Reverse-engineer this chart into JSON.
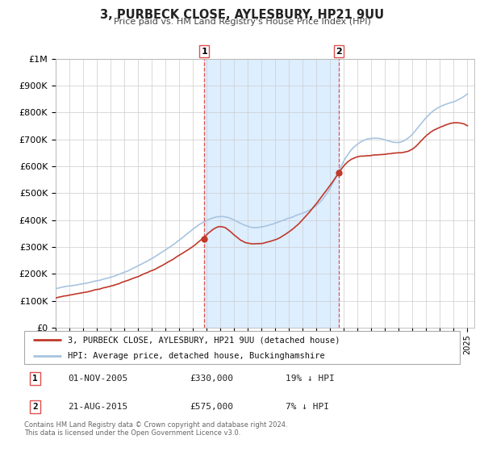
{
  "title": "3, PURBECK CLOSE, AYLESBURY, HP21 9UU",
  "subtitle": "Price paid vs. HM Land Registry's House Price Index (HPI)",
  "ylim": [
    0,
    1000000
  ],
  "yticks": [
    0,
    100000,
    200000,
    300000,
    400000,
    500000,
    600000,
    700000,
    800000,
    900000,
    1000000
  ],
  "xlim_start": 1995.0,
  "xlim_end": 2025.5,
  "xticks": [
    1995,
    1996,
    1997,
    1998,
    1999,
    2000,
    2001,
    2002,
    2003,
    2004,
    2005,
    2006,
    2007,
    2008,
    2009,
    2010,
    2011,
    2012,
    2013,
    2014,
    2015,
    2016,
    2017,
    2018,
    2019,
    2020,
    2021,
    2022,
    2023,
    2024,
    2025
  ],
  "hpi_color": "#a8c4e0",
  "price_color": "#c0392b",
  "marker_color": "#c0392b",
  "shade_color": "#ddeeff",
  "vline_color": "#e05050",
  "marker1_x": 2005.833,
  "marker1_y": 330000,
  "marker2_x": 2015.646,
  "marker2_y": 575000,
  "legend_label1": "3, PURBECK CLOSE, AYLESBURY, HP21 9UU (detached house)",
  "legend_label2": "HPI: Average price, detached house, Buckinghamshire",
  "table_row1_num": "1",
  "table_row1_date": "01-NOV-2005",
  "table_row1_price": "£330,000",
  "table_row1_hpi": "19% ↓ HPI",
  "table_row2_num": "2",
  "table_row2_date": "21-AUG-2015",
  "table_row2_price": "£575,000",
  "table_row2_hpi": "7% ↓ HPI",
  "footer": "Contains HM Land Registry data © Crown copyright and database right 2024.\nThis data is licensed under the Open Government Licence v3.0.",
  "background_color": "#ffffff",
  "grid_color": "#cccccc"
}
